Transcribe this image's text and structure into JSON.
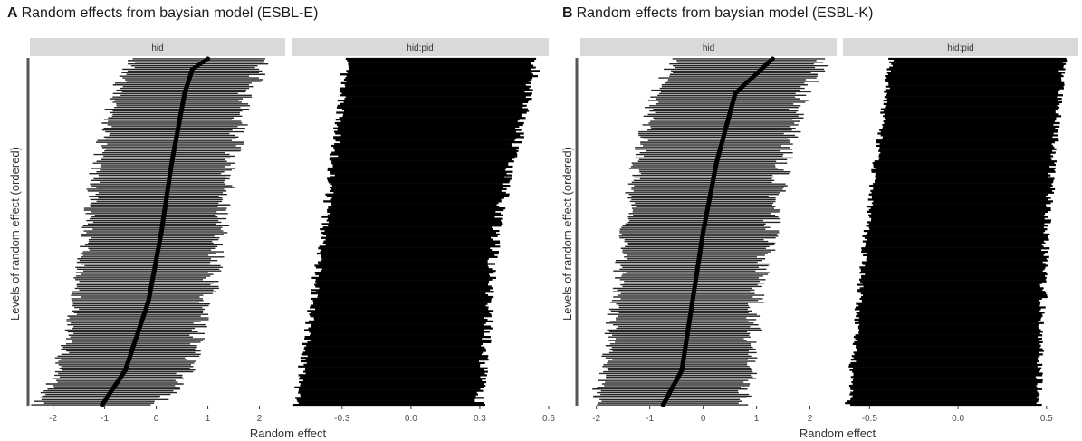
{
  "panels": [
    {
      "letter": "A",
      "title": "Random effects from baysian model (ESBL-E)",
      "ylabel": "Levels of random effect (ordered)",
      "xlabel": "Random effect"
    },
    {
      "letter": "B",
      "title": "Random effects from baysian model (ESBL-K)",
      "ylabel": "Levels of random effect (ordered)",
      "xlabel": "Random effect"
    }
  ],
  "chart_data": [
    {
      "type": "interval",
      "title": "Random effects from baysian model (ESBL-E)",
      "xlabel": "Random effect",
      "ylabel": "Levels of random effect (ordered)",
      "facets": [
        {
          "strip": "hid",
          "xlim": [
            -2.45,
            2.5
          ],
          "xticks": [
            -2,
            -1,
            0,
            1,
            2
          ],
          "xtick_labels": [
            "-2",
            "-1",
            "0",
            "1",
            "2"
          ],
          "estimate_quantiles": [
            [
              0,
              -1.05
            ],
            [
              0.1,
              -0.6
            ],
            [
              0.3,
              -0.15
            ],
            [
              0.5,
              0.1
            ],
            [
              0.7,
              0.3
            ],
            [
              0.9,
              0.55
            ],
            [
              0.97,
              0.7
            ],
            [
              1,
              1.0
            ]
          ],
          "lower_quantiles": [
            [
              0,
              -2.3
            ],
            [
              0.1,
              -1.9
            ],
            [
              0.3,
              -1.55
            ],
            [
              0.5,
              -1.35
            ],
            [
              0.7,
              -1.15
            ],
            [
              0.9,
              -0.8
            ],
            [
              1,
              -0.45
            ]
          ],
          "upper_quantiles": [
            [
              0,
              0.05
            ],
            [
              0.1,
              0.6
            ],
            [
              0.3,
              1.0
            ],
            [
              0.5,
              1.25
            ],
            [
              0.7,
              1.45
            ],
            [
              0.9,
              1.75
            ],
            [
              1,
              2.2
            ]
          ]
        },
        {
          "strip": "hid:pid",
          "xlim": [
            -0.52,
            0.6
          ],
          "xticks": [
            -0.3,
            0.0,
            0.3,
            0.6
          ],
          "xtick_labels": [
            "-0.3",
            "0.0",
            "0.3",
            "0.6"
          ],
          "lower_quantiles": [
            [
              0,
              -0.5
            ],
            [
              0.5,
              -0.38
            ],
            [
              1,
              -0.28
            ]
          ],
          "upper_quantiles": [
            [
              0,
              0.3
            ],
            [
              0.5,
              0.37
            ],
            [
              1,
              0.55
            ]
          ]
        }
      ]
    },
    {
      "type": "interval",
      "title": "Random effects from baysian model (ESBL-K)",
      "xlabel": "Random effect",
      "ylabel": "Levels of random effect (ordered)",
      "facets": [
        {
          "strip": "hid",
          "xlim": [
            -2.3,
            2.5
          ],
          "xticks": [
            -2,
            -1,
            0,
            1,
            2
          ],
          "xtick_labels": [
            "-2",
            "-1",
            "0",
            "1",
            "2"
          ],
          "estimate_quantiles": [
            [
              0,
              -0.75
            ],
            [
              0.1,
              -0.4
            ],
            [
              0.3,
              -0.2
            ],
            [
              0.5,
              0.0
            ],
            [
              0.7,
              0.25
            ],
            [
              0.9,
              0.6
            ],
            [
              1,
              1.3
            ]
          ],
          "lower_quantiles": [
            [
              0,
              -2.05
            ],
            [
              0.1,
              -1.85
            ],
            [
              0.3,
              -1.65
            ],
            [
              0.5,
              -1.45
            ],
            [
              0.7,
              -1.25
            ],
            [
              0.9,
              -0.9
            ],
            [
              1,
              -0.5
            ]
          ],
          "upper_quantiles": [
            [
              0,
              0.8
            ],
            [
              0.1,
              0.85
            ],
            [
              0.3,
              1.0
            ],
            [
              0.5,
              1.25
            ],
            [
              0.7,
              1.5
            ],
            [
              0.9,
              1.85
            ],
            [
              1,
              2.3
            ]
          ]
        },
        {
          "strip": "hid:pid",
          "xlim": [
            -0.65,
            0.68
          ],
          "xticks": [
            -0.5,
            0.0,
            0.5
          ],
          "xtick_labels": [
            "-0.5",
            "0.0",
            "0.5"
          ],
          "lower_quantiles": [
            [
              0,
              -0.62
            ],
            [
              0.5,
              -0.52
            ],
            [
              1,
              -0.38
            ]
          ],
          "upper_quantiles": [
            [
              0,
              0.45
            ],
            [
              0.5,
              0.5
            ],
            [
              1,
              0.6
            ]
          ]
        }
      ]
    }
  ]
}
